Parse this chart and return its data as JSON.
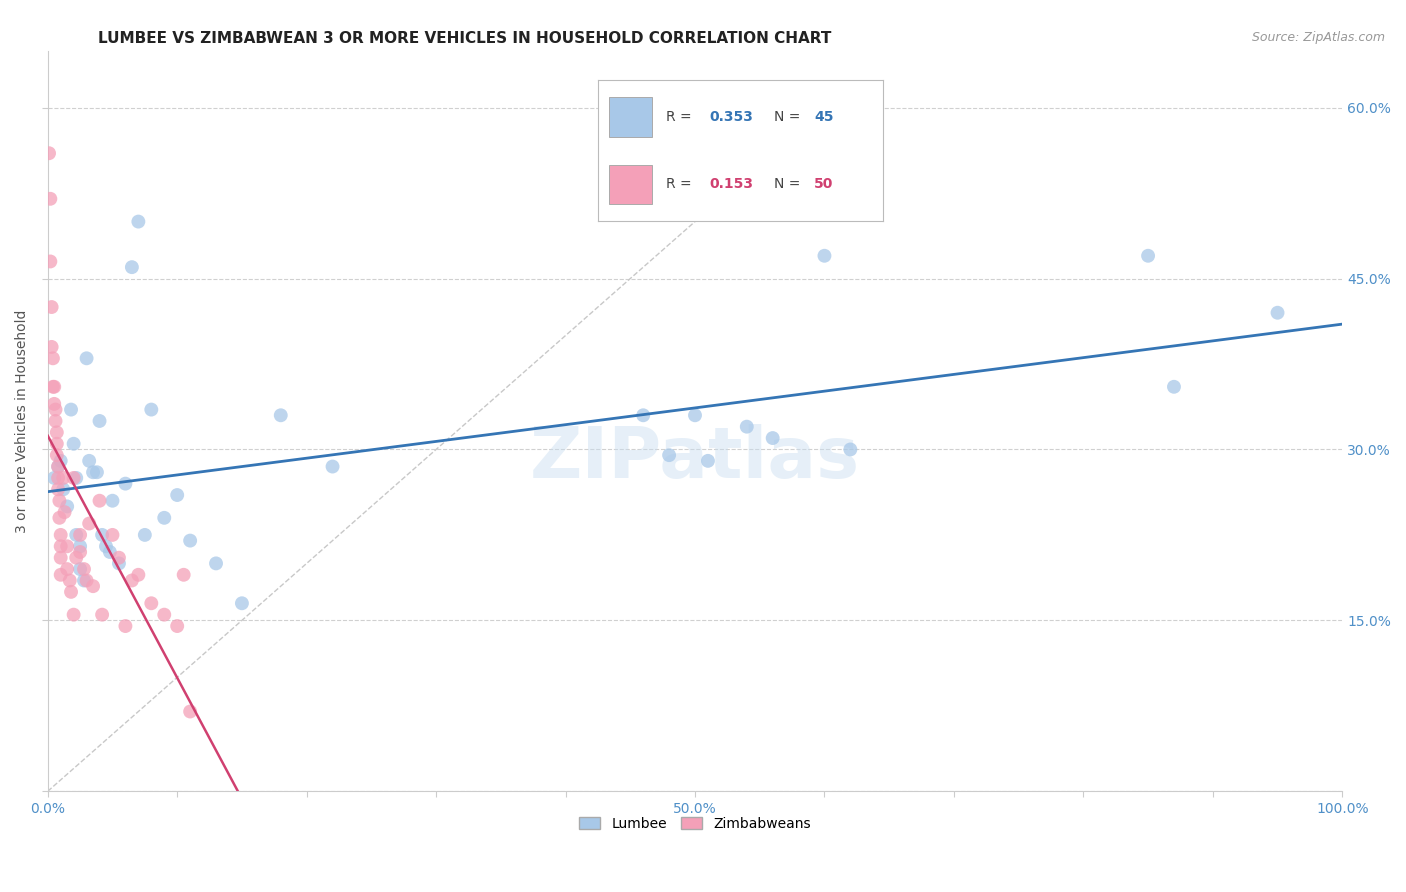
{
  "title": "LUMBEE VS ZIMBABWEAN 3 OR MORE VEHICLES IN HOUSEHOLD CORRELATION CHART",
  "source": "Source: ZipAtlas.com",
  "ylabel": "3 or more Vehicles in Household",
  "xlim": [
    0,
    1.0
  ],
  "ylim": [
    0,
    0.65
  ],
  "xticks": [
    0.0,
    0.1,
    0.2,
    0.3,
    0.4,
    0.5,
    0.6,
    0.7,
    0.8,
    0.9,
    1.0
  ],
  "xticklabels": [
    "0.0%",
    "",
    "",
    "",
    "",
    "50.0%",
    "",
    "",
    "",
    "",
    "100.0%"
  ],
  "yticks": [
    0.0,
    0.15,
    0.3,
    0.45,
    0.6
  ],
  "yticklabels": [
    "",
    "15.0%",
    "30.0%",
    "45.0%",
    "60.0%"
  ],
  "lumbee_R": 0.353,
  "lumbee_N": 45,
  "zimbabwe_R": 0.153,
  "zimbabwe_N": 50,
  "lumbee_color": "#a8c8e8",
  "zimbabwe_color": "#f4a0b8",
  "lumbee_line_color": "#3575b5",
  "zimbabwe_line_color": "#d04070",
  "lumbee_x": [
    0.005,
    0.008,
    0.01,
    0.012,
    0.015,
    0.018,
    0.02,
    0.022,
    0.022,
    0.025,
    0.025,
    0.028,
    0.03,
    0.032,
    0.035,
    0.038,
    0.04,
    0.042,
    0.045,
    0.048,
    0.05,
    0.055,
    0.06,
    0.065,
    0.07,
    0.075,
    0.08,
    0.09,
    0.1,
    0.11,
    0.13,
    0.15,
    0.18,
    0.22,
    0.46,
    0.48,
    0.5,
    0.51,
    0.54,
    0.56,
    0.6,
    0.62,
    0.85,
    0.87,
    0.95
  ],
  "lumbee_y": [
    0.275,
    0.285,
    0.29,
    0.265,
    0.25,
    0.335,
    0.305,
    0.275,
    0.225,
    0.215,
    0.195,
    0.185,
    0.38,
    0.29,
    0.28,
    0.28,
    0.325,
    0.225,
    0.215,
    0.21,
    0.255,
    0.2,
    0.27,
    0.46,
    0.5,
    0.225,
    0.335,
    0.24,
    0.26,
    0.22,
    0.2,
    0.165,
    0.33,
    0.285,
    0.33,
    0.295,
    0.33,
    0.29,
    0.32,
    0.31,
    0.47,
    0.3,
    0.47,
    0.355,
    0.42
  ],
  "zimbabwe_x": [
    0.001,
    0.002,
    0.002,
    0.003,
    0.003,
    0.004,
    0.004,
    0.005,
    0.005,
    0.006,
    0.006,
    0.007,
    0.007,
    0.007,
    0.008,
    0.008,
    0.008,
    0.009,
    0.009,
    0.01,
    0.01,
    0.01,
    0.01,
    0.012,
    0.013,
    0.015,
    0.015,
    0.017,
    0.018,
    0.02,
    0.02,
    0.022,
    0.025,
    0.025,
    0.028,
    0.03,
    0.032,
    0.035,
    0.04,
    0.042,
    0.05,
    0.055,
    0.06,
    0.065,
    0.07,
    0.08,
    0.09,
    0.1,
    0.105,
    0.11
  ],
  "zimbabwe_y": [
    0.56,
    0.52,
    0.465,
    0.425,
    0.39,
    0.38,
    0.355,
    0.355,
    0.34,
    0.335,
    0.325,
    0.315,
    0.305,
    0.295,
    0.285,
    0.275,
    0.265,
    0.255,
    0.24,
    0.225,
    0.215,
    0.205,
    0.19,
    0.275,
    0.245,
    0.215,
    0.195,
    0.185,
    0.175,
    0.155,
    0.275,
    0.205,
    0.225,
    0.21,
    0.195,
    0.185,
    0.235,
    0.18,
    0.255,
    0.155,
    0.225,
    0.205,
    0.145,
    0.185,
    0.19,
    0.165,
    0.155,
    0.145,
    0.19,
    0.07
  ],
  "watermark": "ZIPatlas",
  "background_color": "#ffffff",
  "grid_color": "#d0d0d0",
  "title_fontsize": 11,
  "tick_color": "#5090c8",
  "tick_fontsize": 10,
  "ref_line_start_x": 0.0,
  "ref_line_start_y": 0.0,
  "ref_line_end_x": 0.6,
  "ref_line_end_y": 0.6
}
